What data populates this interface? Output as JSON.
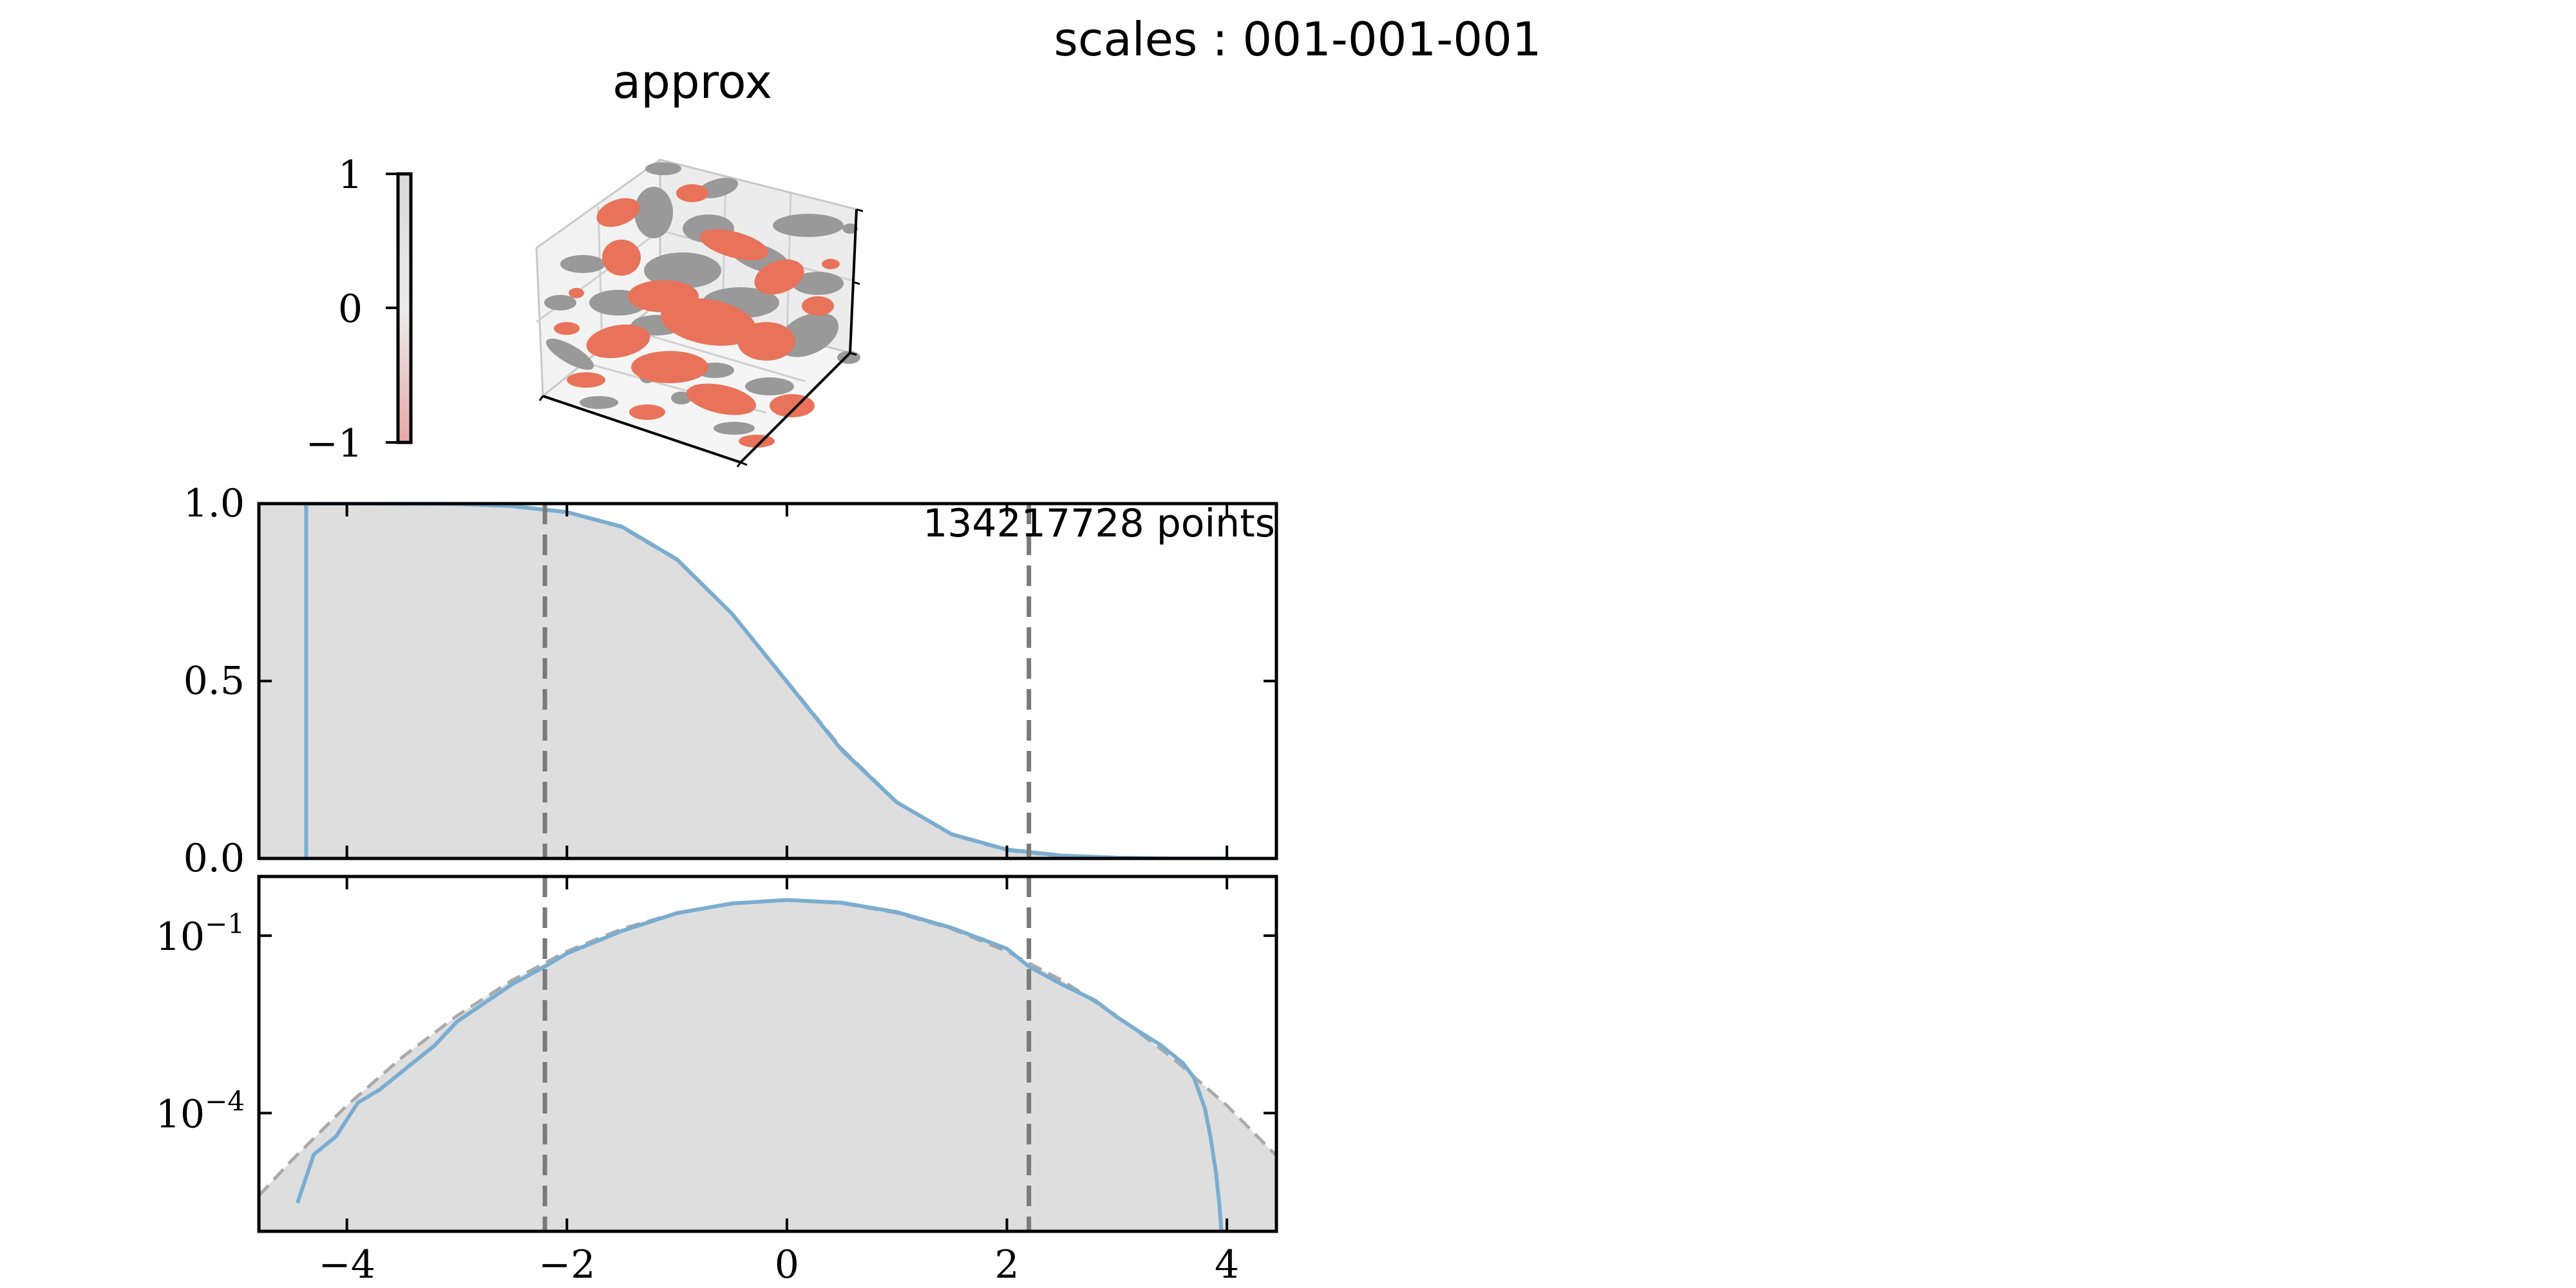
{
  "figure": {
    "suptitle": "scales : 001-001-001"
  },
  "colors": {
    "positive_blob": "#999999",
    "negative_blob": "#e8735a",
    "histogram_line": "#7aadd0",
    "reference_fill": "#dedede",
    "reference_dashed": "#aaaaaa",
    "threshold_line": "#7a7a7a",
    "colorbar_top": "#d9d9d9",
    "colorbar_bottom": "#e8a8a8"
  },
  "chart_data": [
    {
      "type": "3d-isosurface",
      "title": "approx",
      "colorbar": {
        "ticks": [
          1,
          0,
          -1
        ],
        "tick_labels": [
          "1",
          "0",
          "−1"
        ]
      }
    },
    {
      "type": "line",
      "scale": "linear",
      "annotation": "134217728 points",
      "xlim": [
        -4.8,
        4.45
      ],
      "ylim": [
        0.0,
        1.0
      ],
      "xticks": [
        -4,
        -2,
        0,
        2,
        4
      ],
      "yticks": [
        0.0,
        0.5,
        1.0
      ],
      "ytick_labels": [
        "0.0",
        "0.5",
        "1.0"
      ],
      "vlines": [
        -2.2,
        2.2
      ],
      "series": [
        {
          "role": "reference_fill",
          "x": [
            -4.8,
            -4.0,
            -3.0,
            -2.5,
            -2.0,
            -1.5,
            -1.0,
            -0.5,
            0.0,
            0.5,
            1.0,
            1.5,
            2.0,
            2.5,
            3.0,
            3.5,
            4.0,
            4.45
          ],
          "y": [
            1.0,
            1.0,
            0.999,
            0.994,
            0.977,
            0.933,
            0.841,
            0.691,
            0.5,
            0.309,
            0.159,
            0.067,
            0.023,
            0.006,
            0.001,
            0.0,
            0.0,
            0.0
          ]
        },
        {
          "role": "histogram",
          "x": [
            -4.37,
            -4.0,
            -3.0,
            -2.5,
            -2.0,
            -1.5,
            -1.0,
            -0.5,
            0.0,
            0.5,
            1.0,
            1.5,
            2.0,
            2.5,
            3.0,
            3.5,
            4.0
          ],
          "y": [
            1.0,
            1.0,
            0.999,
            0.993,
            0.976,
            0.935,
            0.843,
            0.69,
            0.498,
            0.305,
            0.158,
            0.068,
            0.025,
            0.008,
            0.002,
            0.0,
            0.0
          ]
        }
      ]
    },
    {
      "type": "line",
      "scale": "log",
      "xlim": [
        -4.8,
        4.45
      ],
      "ylim": [
        1e-06,
        1.0
      ],
      "xticks": [
        -4,
        -2,
        0,
        2,
        4
      ],
      "xtick_labels": [
        "−4",
        "−2",
        "0",
        "2",
        "4"
      ],
      "yticks": [
        0.1,
        0.0001
      ],
      "ytick_labels": [
        {
          "base": "10",
          "exp": "−1"
        },
        {
          "base": "10",
          "exp": "−4"
        }
      ],
      "vlines": [
        -2.2,
        2.2
      ],
      "series": [
        {
          "role": "reference_fill",
          "x": [
            -4.8,
            -4.5,
            -4.0,
            -3.5,
            -3.0,
            -2.5,
            -2.0,
            -1.5,
            -1.0,
            -0.5,
            0.0,
            0.5,
            1.0,
            1.5,
            2.0,
            2.5,
            3.0,
            3.5,
            4.0,
            4.45
          ],
          "y": [
            4e-06,
            1.6e-05,
            0.000134,
            0.00087,
            0.0044,
            0.0175,
            0.054,
            0.13,
            0.242,
            0.352,
            0.399,
            0.352,
            0.242,
            0.13,
            0.054,
            0.0175,
            0.0044,
            0.00087,
            0.000134,
            1.9e-05
          ]
        },
        {
          "role": "histogram",
          "x": [
            -4.45,
            -4.3,
            -4.1,
            -3.9,
            -3.7,
            -3.5,
            -3.2,
            -3.0,
            -2.5,
            -2.2,
            -2.0,
            -1.5,
            -1.0,
            -0.5,
            0.0,
            0.5,
            1.0,
            1.5,
            2.0,
            2.2,
            2.5,
            2.8,
            3.0,
            3.2,
            3.4,
            3.6,
            3.7,
            3.8,
            3.85,
            3.9,
            3.93,
            3.95
          ],
          "y": [
            3e-06,
            2e-05,
            4e-05,
            0.00015,
            0.00025,
            0.0005,
            0.0014,
            0.0035,
            0.015,
            0.03,
            0.05,
            0.12,
            0.24,
            0.35,
            0.4,
            0.36,
            0.25,
            0.135,
            0.06,
            0.03,
            0.015,
            0.008,
            0.0042,
            0.0024,
            0.0014,
            0.0007,
            0.0004,
            0.00012,
            4e-05,
            1e-05,
            3e-06,
            1e-06
          ]
        }
      ]
    }
  ]
}
